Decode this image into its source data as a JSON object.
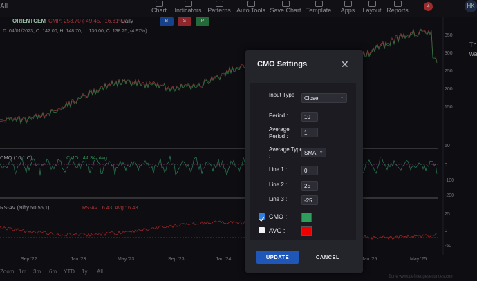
{
  "toolbar": {
    "left": "All",
    "items": [
      "Chart",
      "Indicators",
      "Patterns",
      "Auto Tools",
      "Save Chart",
      "Template",
      "Apps",
      "Layout",
      "Reports"
    ],
    "badge": "4",
    "avatar": "HK"
  },
  "chart_header": {
    "symbol": "ORIENTCEM",
    "quote": "CMP: 253.70 (-49.45, -16.31%)",
    "timeframe": "Daily",
    "buttons": [
      "B",
      "S",
      "P"
    ],
    "ohlc": "D: 04/01/2023, O: 142.00, H: 148.70, L: 136.00, C: 138.25, (4.97%)"
  },
  "price_axis": [
    "350",
    "300",
    "250",
    "200",
    "150"
  ],
  "cmo_axis": [
    "50",
    "0",
    "-100",
    "-200"
  ],
  "rs_axis": [
    "25",
    "0",
    "-50"
  ],
  "indicators": [
    {
      "name": "CMO (10,1,C)",
      "value": "CMO : 44.34, Avg :"
    },
    {
      "name": "RS-AV (Nifty 50,55,1)",
      "value": "RS-AV : 6.43, Avg : 6.43"
    }
  ],
  "x_labels": [
    "Sep '22",
    "Jan '23",
    "May '23",
    "Sep '23",
    "Jan '24",
    "Jan '25",
    "May '25"
  ],
  "zoom": [
    "Zoom",
    "1m",
    "3m",
    "6m",
    "YTD",
    "1y",
    "All"
  ],
  "watermark": "Zone www.definedgesecurities.com",
  "side_text": [
    "Th",
    "wa"
  ],
  "modal": {
    "title": "CMO Settings",
    "fields": [
      {
        "label": "Input Type :",
        "value": "Close"
      },
      {
        "label": "Period :",
        "value": "10"
      },
      {
        "label": "Average Period :",
        "value": "1"
      },
      {
        "label": "Average Type :",
        "value": "SMA"
      },
      {
        "label": "Line 1 :",
        "value": "0"
      },
      {
        "label": "Line 2 :",
        "value": "25"
      },
      {
        "label": "Line 3 :",
        "value": "-25"
      }
    ],
    "toggles": [
      {
        "label": "CMO :",
        "checked": true,
        "color": "#2e9e5b"
      },
      {
        "label": "AVG :",
        "checked": false,
        "color": "#ee0000"
      }
    ],
    "update": "UPDATE",
    "cancel": "CANCEL"
  }
}
